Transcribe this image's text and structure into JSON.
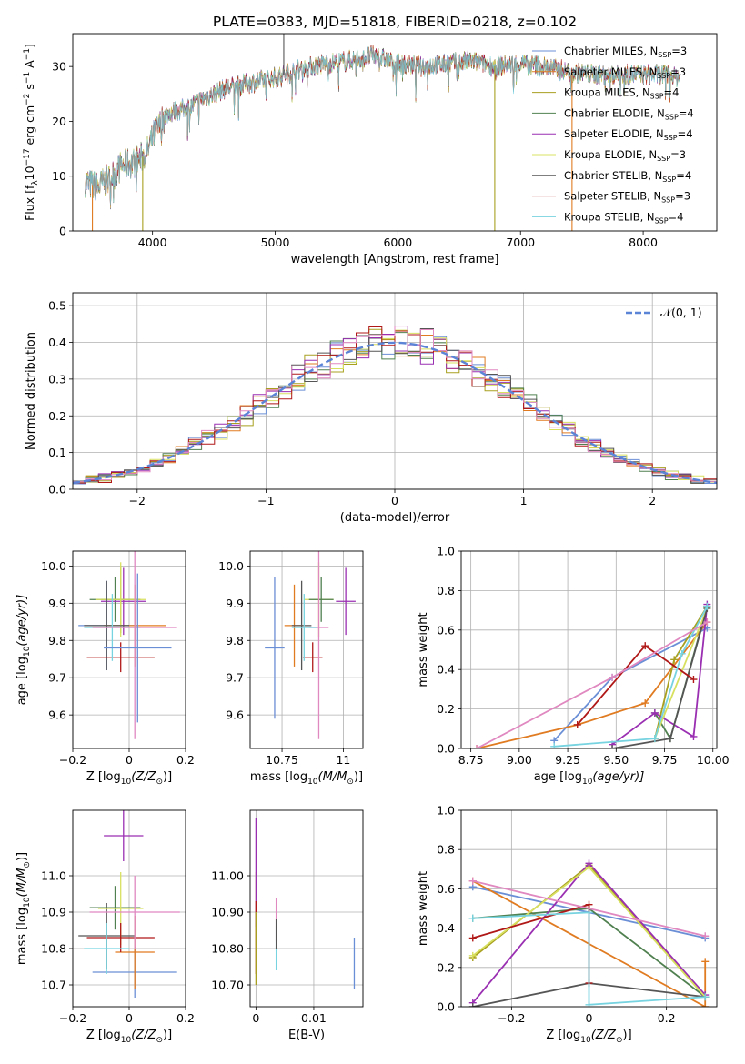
{
  "title": "PLATE=0383, MJD=51818, FIBERID=0218, z=0.102",
  "colors": {
    "Chabrier MILES": "#6b8fd6",
    "Salpeter MILES": "#e07b21",
    "Kroupa MILES": "#a8a020",
    "Chabrier ELODIE": "#508050",
    "Salpeter ELODIE": "#9a2fb2",
    "Kroupa ELODIE": "#d8e060",
    "Chabrier STELIB": "#555555",
    "Salpeter STELIB": "#b01818",
    "Kroupa STELIB": "#77d3e0",
    "pink": "#e088c0"
  },
  "chart_data": [
    {
      "type": "line",
      "xlabel": "wavelength [Angstrom, rest frame]",
      "ylabel_parts": [
        "Flux [f",
        "λ",
        "10",
        "−17",
        " erg cm",
        "−2",
        " s",
        "−1",
        " A",
        "−1",
        "]"
      ],
      "xlim": [
        3350,
        8600
      ],
      "ylim": [
        0,
        36
      ],
      "xticks": [
        4000,
        5000,
        6000,
        7000,
        8000
      ],
      "yticks": [
        0,
        10,
        20,
        30
      ],
      "legend": {
        "placement": "top-right",
        "entries": [
          {
            "model": "Chabrier MILES",
            "nssp": "3"
          },
          {
            "model": "Salpeter MILES",
            "nssp": "3"
          },
          {
            "model": "Kroupa MILES",
            "nssp": "4"
          },
          {
            "model": "Chabrier ELODIE",
            "nssp": "4"
          },
          {
            "model": "Salpeter ELODIE",
            "nssp": "4"
          },
          {
            "model": "Kroupa ELODIE",
            "nssp": "3"
          },
          {
            "model": "Chabrier STELIB",
            "nssp": "4"
          },
          {
            "model": "Salpeter STELIB",
            "nssp": "3"
          },
          {
            "model": "Kroupa STELIB",
            "nssp": "4"
          }
        ]
      },
      "continuum": [
        [
          3450,
          9
        ],
        [
          3550,
          8
        ],
        [
          3650,
          9.5
        ],
        [
          3750,
          12
        ],
        [
          3850,
          12.5
        ],
        [
          3950,
          14
        ],
        [
          4000,
          17
        ],
        [
          4100,
          21
        ],
        [
          4200,
          22
        ],
        [
          4300,
          22.5
        ],
        [
          4400,
          24
        ],
        [
          4500,
          25
        ],
        [
          4600,
          26
        ],
        [
          4700,
          26.5
        ],
        [
          4800,
          27
        ],
        [
          4900,
          27.5
        ],
        [
          5000,
          28
        ],
        [
          5200,
          29.5
        ],
        [
          5400,
          30.5
        ],
        [
          5600,
          31
        ],
        [
          5800,
          32
        ],
        [
          6000,
          30.5
        ],
        [
          6200,
          30
        ],
        [
          6400,
          30.5
        ],
        [
          6600,
          31
        ],
        [
          6800,
          30
        ],
        [
          7000,
          30.5
        ],
        [
          7200,
          30
        ],
        [
          7400,
          29
        ],
        [
          7600,
          28.5
        ],
        [
          7800,
          28.5
        ],
        [
          8000,
          28.5
        ],
        [
          8200,
          28.5
        ],
        [
          8300,
          28
        ]
      ],
      "spikes": [
        {
          "x": 5070,
          "y": 36,
          "color": "Chabrier STELIB"
        },
        {
          "x": 6790,
          "y": 0,
          "color": "Kroupa MILES"
        },
        {
          "x": 7420,
          "y": 0,
          "color": "Salpeter MILES"
        },
        {
          "x": 3510,
          "y": 0,
          "color": "Salpeter MILES"
        },
        {
          "x": 3920,
          "y": 0,
          "color": "Kroupa MILES"
        }
      ]
    },
    {
      "type": "histogram",
      "xlabel": "(data-model)/error",
      "ylabel": "Normed distribution",
      "xlim": [
        -2.5,
        2.5
      ],
      "ylim": [
        0,
        0.535
      ],
      "xticks": [
        -2,
        -1,
        0,
        1,
        2
      ],
      "yticks": [
        0.0,
        0.1,
        0.2,
        0.3,
        0.4,
        0.5
      ],
      "reference": {
        "label": "𝒩(0, 1)",
        "mu": 0,
        "sigma": 1
      },
      "bin_width": 0.1
    },
    {
      "type": "errorbar",
      "xlabel": "Z [log",
      "xlabel_sub": "10",
      "xlabel_tail": "(Z/Z",
      "ylabel": "age  [log",
      "ylabel_sub": "10",
      "ylabel_tail": "(age/yr)]",
      "xlim": [
        -0.2,
        0.2
      ],
      "ylim": [
        9.51,
        10.04
      ],
      "xticks": [
        -0.2,
        0.0,
        0.2
      ],
      "yticks": [
        9.6,
        9.7,
        9.8,
        9.9,
        10.0
      ],
      "points": [
        {
          "x": -0.08,
          "y": 9.84,
          "xerr": 0.1,
          "yerr": 0.12,
          "color": "Chabrier MILES"
        },
        {
          "x": 0.02,
          "y": 9.84,
          "xerr": 0.11,
          "yerr": 0.11,
          "color": "Salpeter MILES"
        },
        {
          "x": -0.03,
          "y": 9.91,
          "xerr": 0.07,
          "yerr": 0.09,
          "color": "Kroupa MILES"
        },
        {
          "x": -0.05,
          "y": 9.91,
          "xerr": 0.09,
          "yerr": 0.06,
          "color": "Chabrier ELODIE"
        },
        {
          "x": -0.02,
          "y": 9.905,
          "xerr": 0.08,
          "yerr": 0.09,
          "color": "Salpeter ELODIE"
        },
        {
          "x": -0.03,
          "y": 9.91,
          "xerr": 0.09,
          "yerr": 0.1,
          "color": "Kroupa ELODIE"
        },
        {
          "x": -0.08,
          "y": 9.84,
          "xerr": 0.08,
          "yerr": 0.12,
          "color": "Chabrier STELIB"
        },
        {
          "x": -0.03,
          "y": 9.755,
          "xerr": 0.12,
          "yerr": 0.04,
          "color": "Salpeter STELIB"
        },
        {
          "x": -0.06,
          "y": 9.835,
          "xerr": 0.1,
          "yerr": 0.09,
          "color": "Kroupa STELIB"
        },
        {
          "x": 0.02,
          "y": 9.835,
          "xerr": 0.15,
          "yerr": 0.3,
          "color": "pink"
        },
        {
          "x": 0.03,
          "y": 9.78,
          "xerr": 0.12,
          "yerr": 0.2,
          "color": "Chabrier MILES"
        }
      ]
    },
    {
      "type": "errorbar",
      "xlabel": "mass [log",
      "xlabel_sub": "10",
      "xlabel_tail": "(M/M",
      "xlim": [
        10.62,
        11.08
      ],
      "ylim": [
        9.51,
        10.04
      ],
      "xticks": [
        10.75,
        11.0
      ],
      "yticks": [
        9.6,
        9.7,
        9.8,
        9.9,
        10.0
      ],
      "points": [
        {
          "x": 10.72,
          "y": 9.78,
          "xerr": 0.04,
          "yerr": 0.19,
          "color": "Chabrier MILES"
        },
        {
          "x": 10.8,
          "y": 9.84,
          "xerr": 0.04,
          "yerr": 0.11,
          "color": "Salpeter MILES"
        },
        {
          "x": 10.83,
          "y": 9.84,
          "xerr": 0.04,
          "yerr": 0.12,
          "color": "Chabrier STELIB"
        },
        {
          "x": 10.9,
          "y": 9.91,
          "xerr": 0.06,
          "yerr": 0.1,
          "color": "Kroupa ELODIE"
        },
        {
          "x": 10.91,
          "y": 9.91,
          "xerr": 0.05,
          "yerr": 0.06,
          "color": "Chabrier ELODIE"
        },
        {
          "x": 11.01,
          "y": 9.905,
          "xerr": 0.04,
          "yerr": 0.09,
          "color": "Salpeter ELODIE"
        },
        {
          "x": 10.875,
          "y": 9.755,
          "xerr": 0.04,
          "yerr": 0.04,
          "color": "Salpeter STELIB"
        },
        {
          "x": 10.9,
          "y": 9.835,
          "xerr": 0.04,
          "yerr": 0.3,
          "color": "pink"
        },
        {
          "x": 10.84,
          "y": 9.835,
          "xerr": 0.05,
          "yerr": 0.09,
          "color": "Kroupa STELIB"
        }
      ]
    },
    {
      "type": "line",
      "xlabel": "age  [log",
      "xlabel_sub": "10",
      "xlabel_tail": "(age/yr)]",
      "ylabel": "mass weight",
      "xlim": [
        8.7,
        10.02
      ],
      "ylim": [
        0,
        1.0
      ],
      "xticks": [
        8.75,
        9.0,
        9.25,
        9.5,
        9.75,
        10.0
      ],
      "yticks": [
        0.0,
        0.2,
        0.4,
        0.6,
        0.8,
        1.0
      ],
      "series": [
        {
          "color": "Chabrier MILES",
          "points": [
            [
              9.18,
              0.04
            ],
            [
              9.48,
              0.36
            ],
            [
              9.97,
              0.61
            ]
          ]
        },
        {
          "color": "Salpeter MILES",
          "points": [
            [
              8.78,
              0.0
            ],
            [
              9.3,
              0.12
            ],
            [
              9.65,
              0.23
            ],
            [
              9.97,
              0.64
            ]
          ]
        },
        {
          "color": "Kroupa MILES",
          "points": [
            [
              9.7,
              0.05
            ],
            [
              9.8,
              0.45
            ],
            [
              9.97,
              0.72
            ]
          ]
        },
        {
          "color": "Chabrier ELODIE",
          "points": [
            [
              9.7,
              0.18
            ],
            [
              9.78,
              0.05
            ],
            [
              9.97,
              0.72
            ]
          ]
        },
        {
          "color": "Salpeter ELODIE",
          "points": [
            [
              9.48,
              0.02
            ],
            [
              9.7,
              0.18
            ],
            [
              9.9,
              0.06
            ],
            [
              9.97,
              0.73
            ]
          ]
        },
        {
          "color": "Kroupa ELODIE",
          "points": [
            [
              9.7,
              0.05
            ],
            [
              9.97,
              0.71
            ]
          ]
        },
        {
          "color": "Chabrier STELIB",
          "points": [
            [
              9.48,
              0.0
            ],
            [
              9.78,
              0.05
            ],
            [
              9.97,
              0.71
            ]
          ]
        },
        {
          "color": "Salpeter STELIB",
          "points": [
            [
              9.3,
              0.12
            ],
            [
              9.65,
              0.52
            ],
            [
              9.9,
              0.35
            ]
          ]
        },
        {
          "color": "Kroupa STELIB",
          "points": [
            [
              9.18,
              0.01
            ],
            [
              9.7,
              0.05
            ],
            [
              9.84,
              0.48
            ],
            [
              9.97,
              0.72
            ]
          ]
        },
        {
          "color": "pink",
          "points": [
            [
              8.78,
              0.0
            ],
            [
              9.48,
              0.36
            ],
            [
              9.97,
              0.64
            ]
          ]
        }
      ]
    },
    {
      "type": "errorbar",
      "xlabel": "Z [log",
      "xlabel_sub": "10",
      "xlabel_tail": "(Z/Z",
      "ylabel": "mass [log",
      "ylabel_sub": "10",
      "ylabel_tail": "(M/M",
      "xlim": [
        -0.2,
        0.2
      ],
      "ylim": [
        10.64,
        11.18
      ],
      "xticks": [
        -0.2,
        0.0,
        0.2
      ],
      "yticks": [
        10.7,
        10.8,
        10.9,
        11.0
      ],
      "points": [
        {
          "x": 0.02,
          "y": 10.735,
          "xerr": 0.15,
          "yerr": 0.07,
          "color": "Chabrier MILES"
        },
        {
          "x": 0.02,
          "y": 10.79,
          "xerr": 0.07,
          "yerr": 0.1,
          "color": "Salpeter MILES"
        },
        {
          "x": -0.08,
          "y": 10.835,
          "xerr": 0.1,
          "yerr": 0.09,
          "color": "Chabrier STELIB"
        },
        {
          "x": -0.05,
          "y": 10.912,
          "xerr": 0.09,
          "yerr": 0.06,
          "color": "Chabrier ELODIE"
        },
        {
          "x": -0.02,
          "y": 11.11,
          "xerr": 0.07,
          "yerr": 0.07,
          "color": "Salpeter ELODIE"
        },
        {
          "x": -0.03,
          "y": 10.91,
          "xerr": 0.08,
          "yerr": 0.1,
          "color": "Kroupa ELODIE"
        },
        {
          "x": -0.03,
          "y": 10.83,
          "xerr": 0.12,
          "yerr": 0.04,
          "color": "Salpeter STELIB"
        },
        {
          "x": 0.02,
          "y": 10.9,
          "xerr": 0.16,
          "yerr": 0.1,
          "color": "pink"
        },
        {
          "x": -0.08,
          "y": 10.8,
          "xerr": 0.08,
          "yerr": 0.07,
          "color": "Kroupa STELIB"
        }
      ]
    },
    {
      "type": "errorbar",
      "xlabel": "E(B-V)",
      "xlim": [
        -0.001,
        0.0185
      ],
      "ylim": [
        10.64,
        11.18
      ],
      "xticks": [
        0.0,
        0.01
      ],
      "yticks": [
        10.7,
        10.8,
        10.9,
        11.0
      ],
      "points": [
        {
          "x": 0.0,
          "y": 10.91,
          "yerr": 0.1,
          "color": "Kroupa ELODIE"
        },
        {
          "x": 0.0,
          "y": 11.01,
          "yerr": 0.15,
          "color": "Salpeter ELODIE"
        },
        {
          "x": 0.0,
          "y": 10.83,
          "yerr": 0.1,
          "color": "Salpeter STELIB"
        },
        {
          "x": 0.0,
          "y": 10.8,
          "yerr": 0.1,
          "color": "Kroupa MILES"
        },
        {
          "x": 0.0035,
          "y": 10.8,
          "yerr": 0.06,
          "color": "Kroupa STELIB"
        },
        {
          "x": 0.0035,
          "y": 10.88,
          "yerr": 0.06,
          "color": "pink"
        },
        {
          "x": 0.0035,
          "y": 10.84,
          "yerr": 0.04,
          "color": "Chabrier STELIB"
        },
        {
          "x": 0.017,
          "y": 10.76,
          "yerr": 0.07,
          "color": "Chabrier MILES"
        }
      ]
    },
    {
      "type": "line",
      "xlabel": "Z [log",
      "xlabel_sub": "10",
      "xlabel_tail": "(Z/Z",
      "ylabel": "mass weight",
      "xlim": [
        -0.33,
        0.33
      ],
      "ylim": [
        0,
        1.0
      ],
      "xticks": [
        -0.2,
        0.0,
        0.2
      ],
      "yticks": [
        0.0,
        0.2,
        0.4,
        0.6,
        0.8,
        1.0
      ],
      "series": [
        {
          "color": "Chabrier MILES",
          "points": [
            [
              -0.3,
              0.61
            ],
            [
              0.3,
              0.35
            ]
          ]
        },
        {
          "color": "Salpeter MILES",
          "points": [
            [
              -0.3,
              0.64
            ],
            [
              0.3,
              0.0
            ],
            [
              0.3,
              0.23
            ]
          ]
        },
        {
          "color": "Kroupa MILES",
          "points": [
            [
              -0.3,
              0.25
            ],
            [
              0.0,
              0.72
            ],
            [
              0.3,
              0.05
            ]
          ]
        },
        {
          "color": "Chabrier ELODIE",
          "points": [
            [
              -0.3,
              0.45
            ],
            [
              0.0,
              0.5
            ],
            [
              0.3,
              0.05
            ]
          ]
        },
        {
          "color": "Salpeter ELODIE",
          "points": [
            [
              -0.3,
              0.02
            ],
            [
              0.0,
              0.73
            ],
            [
              0.3,
              0.06
            ]
          ]
        },
        {
          "color": "Kroupa ELODIE",
          "points": [
            [
              -0.3,
              0.26
            ],
            [
              0.0,
              0.71
            ],
            [
              0.3,
              0.05
            ]
          ]
        },
        {
          "color": "Chabrier STELIB",
          "points": [
            [
              -0.3,
              0.0
            ],
            [
              0.0,
              0.12
            ],
            [
              0.3,
              0.05
            ]
          ]
        },
        {
          "color": "Salpeter STELIB",
          "points": [
            [
              -0.3,
              0.35
            ],
            [
              0.0,
              0.52
            ],
            [
              0.0,
              0.12
            ]
          ]
        },
        {
          "color": "Kroupa STELIB",
          "points": [
            [
              -0.3,
              0.45
            ],
            [
              0.0,
              0.48
            ],
            [
              0.0,
              0.01
            ],
            [
              0.3,
              0.05
            ]
          ]
        },
        {
          "color": "pink",
          "points": [
            [
              -0.3,
              0.64
            ],
            [
              0.3,
              0.36
            ]
          ]
        }
      ]
    }
  ]
}
